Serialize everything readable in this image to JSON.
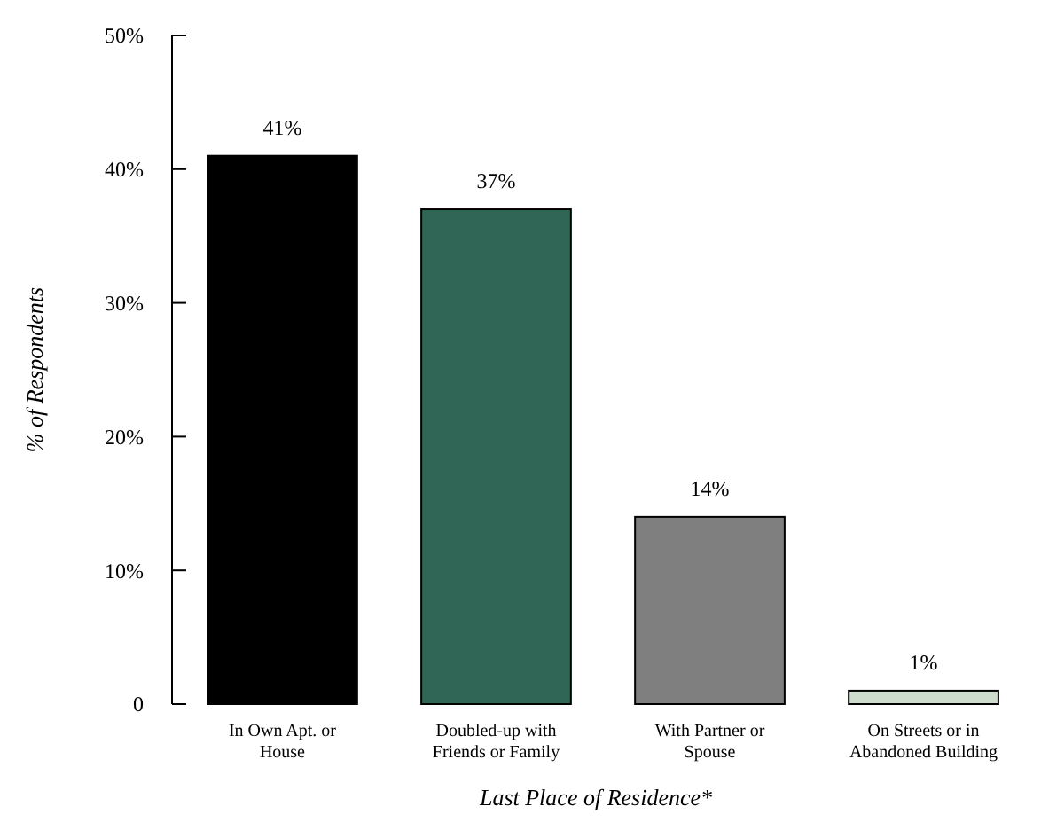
{
  "chart_data": {
    "type": "bar",
    "xlabel": "Last Place of Residence*",
    "ylabel": "% of Respondents",
    "categories": [
      "In Own Apt. or House",
      "Doubled-up with Friends or Family",
      "With Partner or Spouse",
      "On Streets or in Abandoned Building"
    ],
    "values": [
      41,
      37,
      14,
      1
    ],
    "colors": [
      "#000000",
      "#2f6656",
      "#7f7f7f",
      "#cddccd"
    ],
    "value_labels": [
      "41%",
      "37%",
      "14%",
      "1%"
    ],
    "ylim": [
      0,
      50
    ],
    "yticks": [
      0,
      {
        "value": 10,
        "label": "10%"
      },
      {
        "value": 20,
        "label": "20%"
      },
      {
        "value": 30,
        "label": "30%"
      },
      {
        "value": 40,
        "label": "40%"
      },
      {
        "value": 50,
        "label": "50%"
      }
    ],
    "grid": false
  }
}
